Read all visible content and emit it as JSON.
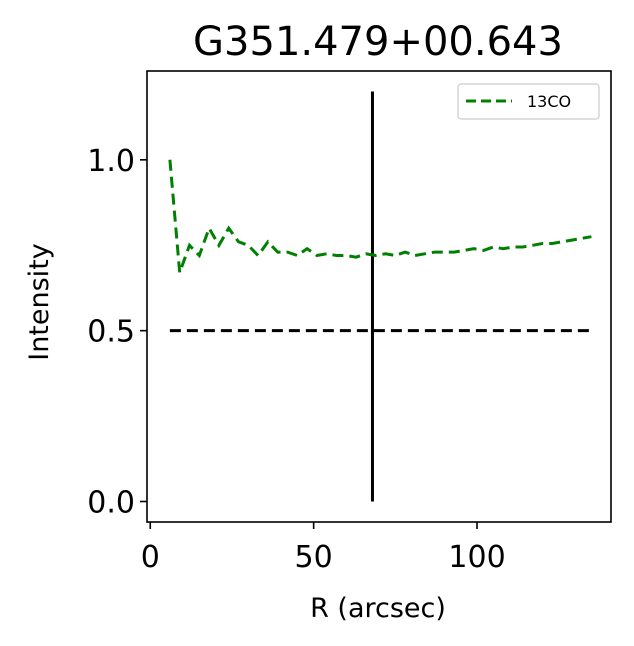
{
  "chart_data": {
    "type": "line",
    "title": "G351.479+00.643",
    "xlabel": "R (arcsec)",
    "ylabel": "Intensity",
    "xlim": [
      -1,
      141
    ],
    "ylim": [
      -0.06,
      1.26
    ],
    "xticks": [
      0,
      50,
      100
    ],
    "xtick_labels": [
      "0",
      "50",
      "100"
    ],
    "yticks": [
      0.0,
      0.5,
      1.0
    ],
    "ytick_labels": [
      "0.0",
      "0.5",
      "1.0"
    ],
    "grid": false,
    "legend_position": "top-right",
    "series": [
      {
        "name": "13CO",
        "color": "#008000",
        "dash": "dashed",
        "x": [
          6,
          9,
          12,
          15,
          18,
          21,
          24,
          27,
          30,
          33,
          36,
          39,
          42,
          45,
          48,
          51,
          54,
          57,
          60,
          63,
          66,
          69,
          72,
          75,
          78,
          81,
          84,
          87,
          90,
          93,
          96,
          99,
          102,
          105,
          108,
          111,
          114,
          117,
          120,
          123,
          126,
          129,
          132,
          135
        ],
        "values": [
          1.0,
          0.67,
          0.75,
          0.72,
          0.8,
          0.75,
          0.8,
          0.76,
          0.75,
          0.72,
          0.76,
          0.73,
          0.73,
          0.72,
          0.74,
          0.72,
          0.725,
          0.72,
          0.72,
          0.715,
          0.725,
          0.72,
          0.725,
          0.72,
          0.73,
          0.72,
          0.725,
          0.73,
          0.73,
          0.73,
          0.735,
          0.74,
          0.735,
          0.745,
          0.74,
          0.745,
          0.745,
          0.75,
          0.755,
          0.755,
          0.76,
          0.765,
          0.77,
          0.775
        ]
      }
    ],
    "reference_lines": [
      {
        "kind": "horizontal",
        "y": 0.5,
        "x_range": [
          6,
          135
        ],
        "color": "#000000",
        "dash": "dashed"
      },
      {
        "kind": "vertical",
        "x": 68,
        "y_range": [
          0.0,
          1.2
        ],
        "color": "#000000",
        "dash": "solid"
      }
    ]
  }
}
